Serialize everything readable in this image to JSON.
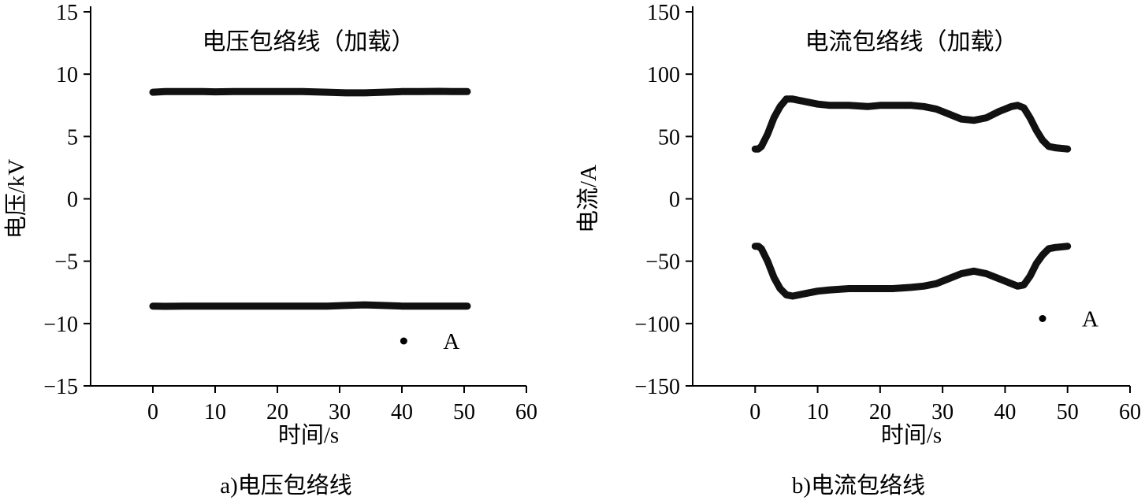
{
  "colors": {
    "axis": "#000000",
    "series": "#111111",
    "background": "#ffffff"
  },
  "chart_data": [
    {
      "type": "line",
      "panel": "a",
      "title": "电压包络线（加载）",
      "xlabel": "时间/s",
      "ylabel": "电压/kV",
      "caption": "a)电压包络线",
      "xlim": [
        -10,
        60
      ],
      "ylim": [
        -15,
        15
      ],
      "xticks": [
        0,
        10,
        20,
        30,
        40,
        50,
        60
      ],
      "yticks": [
        -15,
        -10,
        -5,
        0,
        5,
        10,
        15
      ],
      "grid": false,
      "legend": {
        "label": "A",
        "marker_x": 40.3,
        "marker_y": -11.4
      },
      "series": [
        {
          "name": "upper-envelope",
          "x": [
            0,
            2,
            5,
            8,
            10,
            13,
            16,
            20,
            24,
            28,
            31,
            34,
            37,
            40,
            43,
            46,
            48,
            50.5
          ],
          "y": [
            8.55,
            8.6,
            8.6,
            8.6,
            8.58,
            8.6,
            8.6,
            8.6,
            8.6,
            8.55,
            8.5,
            8.5,
            8.55,
            8.6,
            8.6,
            8.62,
            8.6,
            8.6
          ]
        },
        {
          "name": "lower-envelope",
          "x": [
            0,
            2,
            5,
            8,
            10,
            13,
            16,
            20,
            24,
            28,
            31,
            34,
            37,
            40,
            43,
            46,
            48,
            50.5
          ],
          "y": [
            -8.6,
            -8.62,
            -8.6,
            -8.6,
            -8.6,
            -8.6,
            -8.6,
            -8.6,
            -8.6,
            -8.6,
            -8.55,
            -8.5,
            -8.55,
            -8.6,
            -8.6,
            -8.6,
            -8.6,
            -8.6
          ]
        }
      ]
    },
    {
      "type": "line",
      "panel": "b",
      "title": "电流包络线（加载）",
      "xlabel": "时间/s",
      "ylabel": "电流/A",
      "caption": "b)电流包络线",
      "xlim": [
        -10,
        60
      ],
      "ylim": [
        -150,
        150
      ],
      "xticks": [
        0,
        10,
        20,
        30,
        40,
        50,
        60
      ],
      "yticks": [
        -150,
        -100,
        -50,
        0,
        50,
        100,
        150
      ],
      "grid": false,
      "legend": {
        "label": "A",
        "marker_x": 46,
        "marker_y": -96
      },
      "series": [
        {
          "name": "upper-envelope",
          "x": [
            0,
            0.5,
            1,
            2,
            3,
            4,
            5,
            6,
            8,
            10,
            12,
            15,
            18,
            20,
            22,
            25,
            27,
            29,
            31,
            33,
            35,
            37,
            39,
            41,
            42,
            43,
            44,
            45,
            46,
            47,
            48,
            50
          ],
          "y": [
            40,
            40,
            42,
            52,
            65,
            74,
            80,
            80,
            78,
            76,
            75,
            75,
            74,
            75,
            75,
            75,
            74,
            72,
            68,
            64,
            63,
            65,
            70,
            74,
            75,
            73,
            65,
            55,
            47,
            42,
            41,
            40
          ]
        },
        {
          "name": "lower-envelope",
          "x": [
            0,
            0.5,
            1,
            2,
            3,
            4,
            5,
            6,
            8,
            10,
            12,
            15,
            18,
            20,
            22,
            25,
            27,
            29,
            31,
            33,
            35,
            37,
            39,
            41,
            42,
            43,
            44,
            45,
            46,
            47,
            48,
            50
          ],
          "y": [
            -38,
            -38,
            -40,
            -50,
            -63,
            -72,
            -77,
            -78,
            -76,
            -74,
            -73,
            -72,
            -72,
            -72,
            -72,
            -71,
            -70,
            -68,
            -64,
            -60,
            -58,
            -60,
            -64,
            -68,
            -70,
            -69,
            -62,
            -52,
            -45,
            -40,
            -39,
            -38
          ]
        }
      ]
    }
  ]
}
